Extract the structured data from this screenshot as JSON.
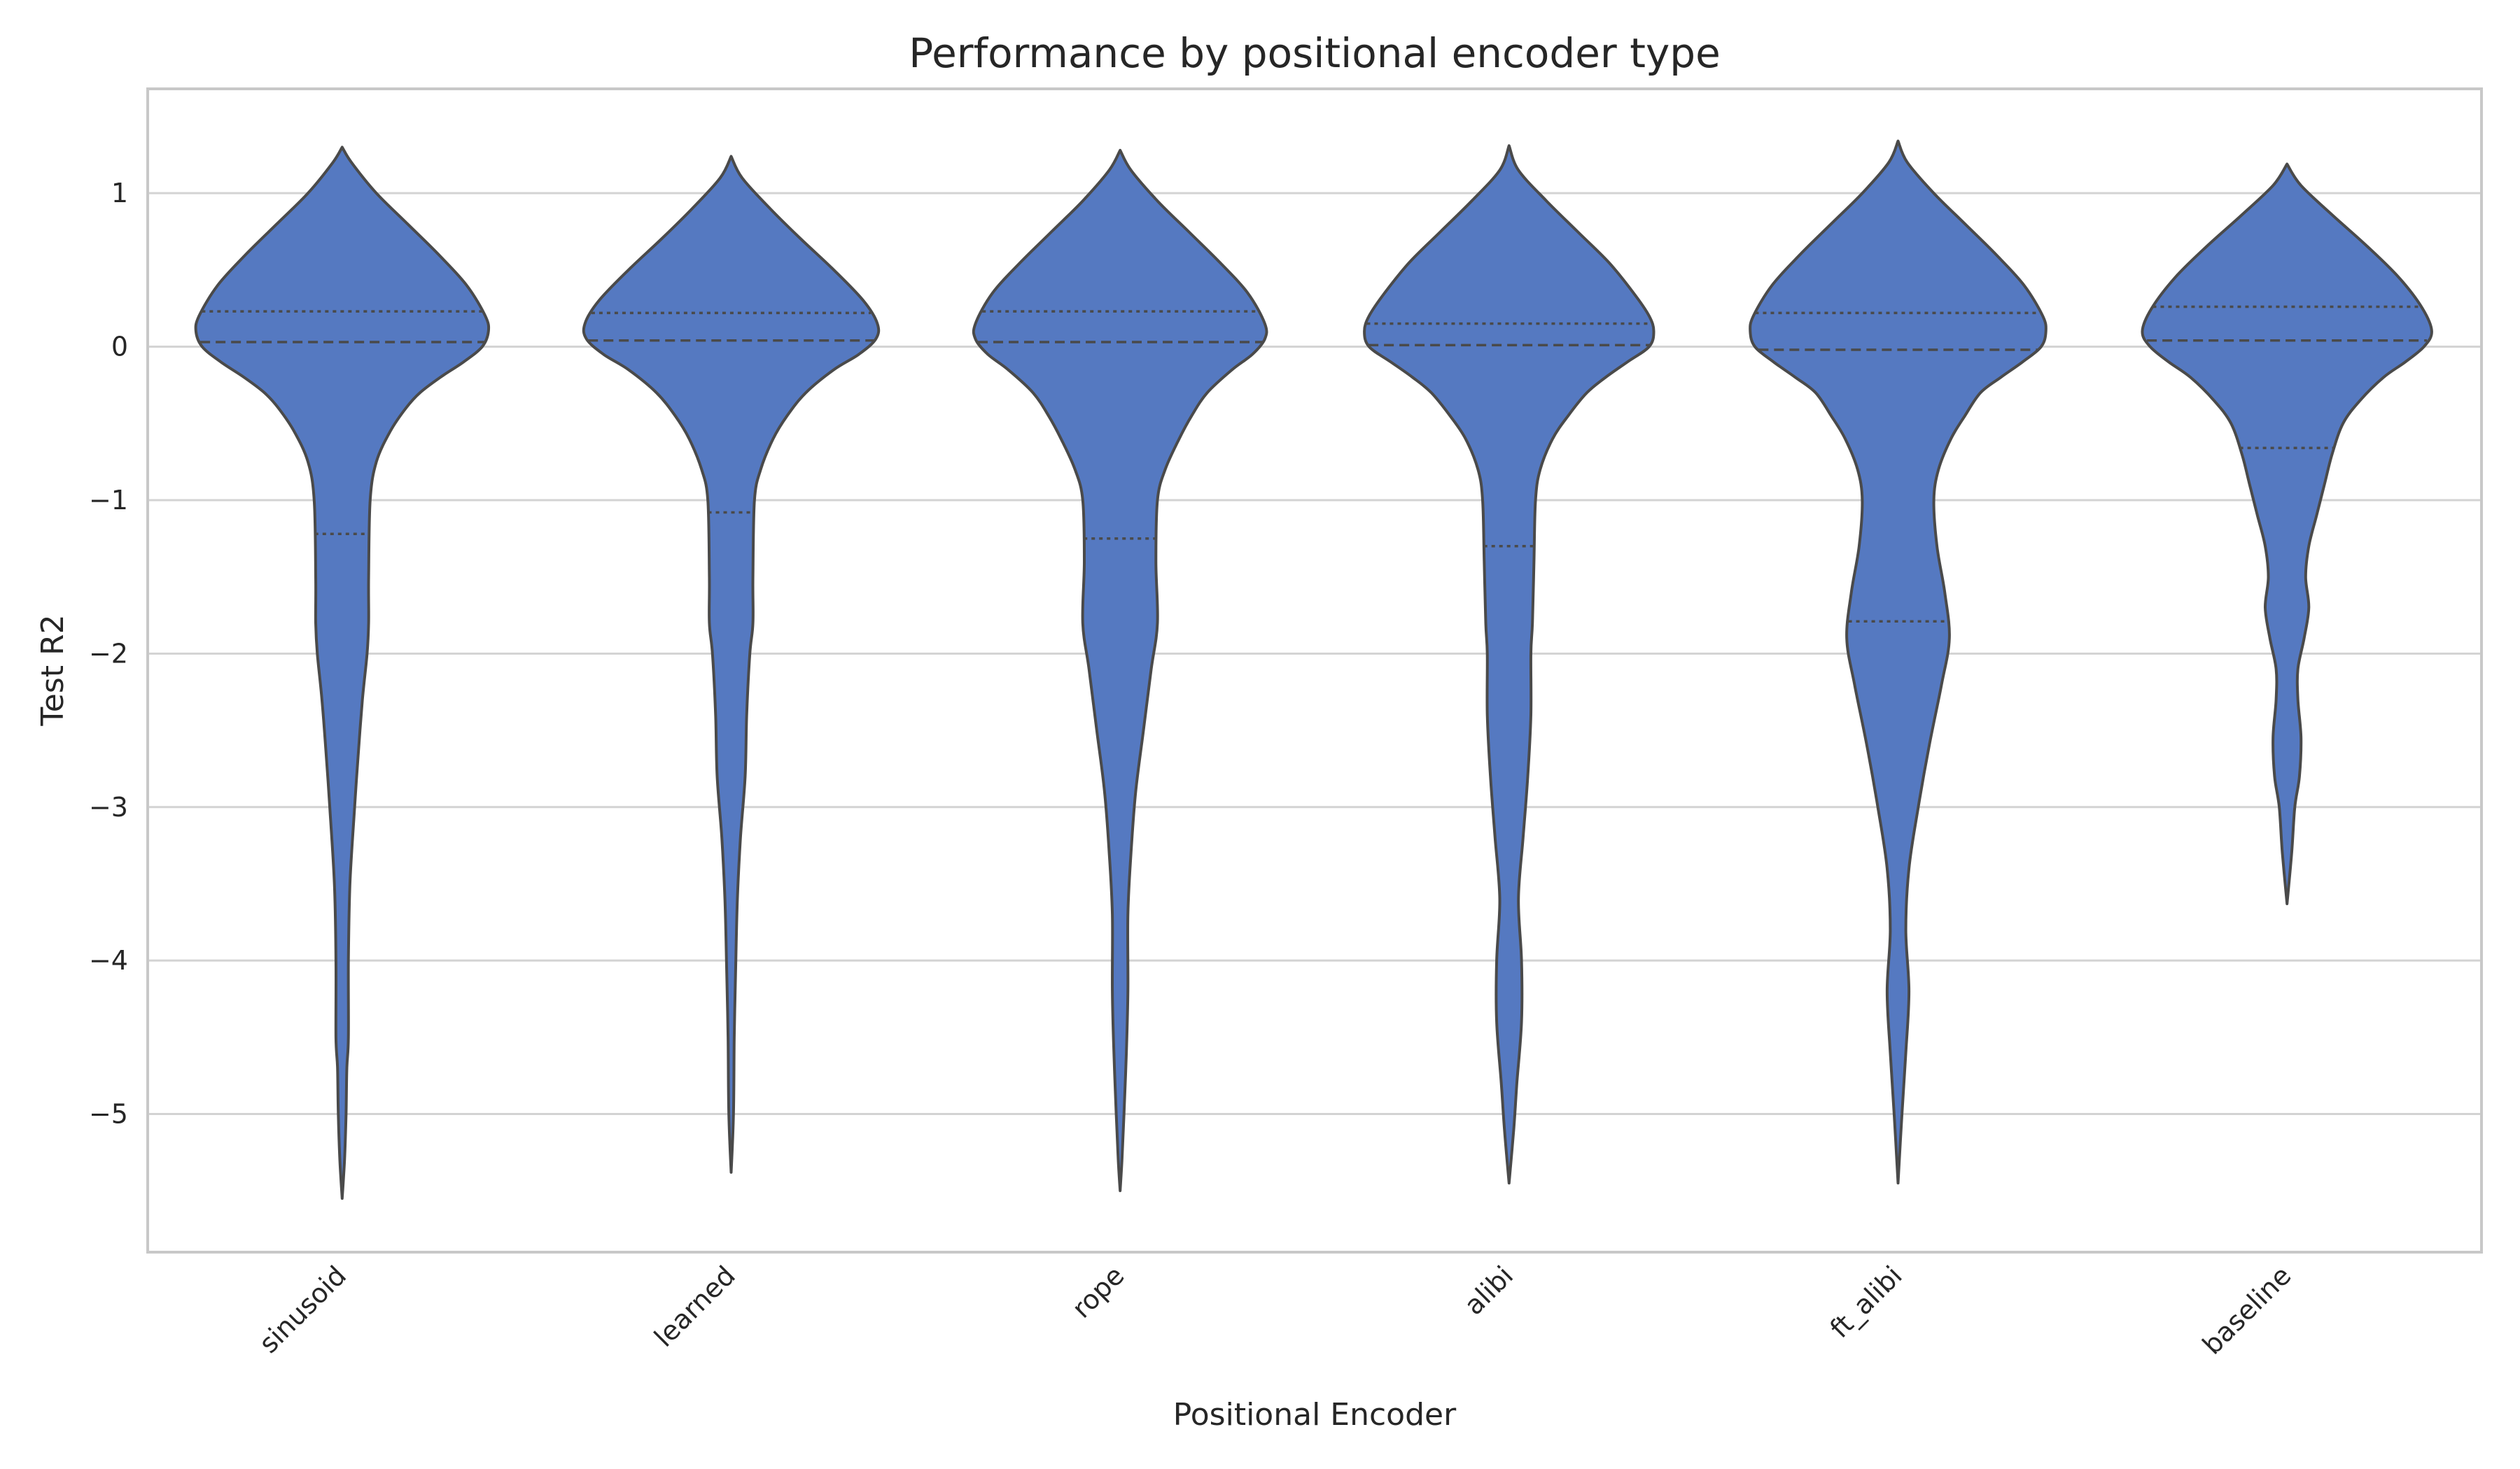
{
  "chart_data": {
    "type": "violin",
    "title": "Performance by positional encoder type",
    "xlabel": "Positional Encoder",
    "ylabel": "Test R2",
    "categories": [
      "sinusoid",
      "learned",
      "rope",
      "alibi",
      "ft_alibi",
      "baseline"
    ],
    "ylim": [
      -5.9,
      1.68
    ],
    "yticks": [
      1,
      0,
      -1,
      -2,
      -3,
      -4,
      -5
    ],
    "ytick_labels": [
      "1",
      "0",
      "−1",
      "−2",
      "−3",
      "−4",
      "−5"
    ],
    "grid": "y",
    "legend": "none",
    "inner": "quart",
    "colors": {
      "fill": "#5579c1",
      "edge": "#4a4a4a",
      "grid": "#d3d3d3",
      "frame": "#c8c8c8",
      "text": "#262626"
    },
    "violins": [
      {
        "category": "sinusoid",
        "min": -5.55,
        "max": 1.3,
        "q1": -1.22,
        "median": 0.03,
        "q3": 0.23,
        "profile": [
          [
            1.3,
            0.0
          ],
          [
            1.2,
            0.06
          ],
          [
            1.0,
            0.22
          ],
          [
            0.8,
            0.42
          ],
          [
            0.6,
            0.62
          ],
          [
            0.4,
            0.8
          ],
          [
            0.2,
            0.92
          ],
          [
            0.1,
            0.94
          ],
          [
            0.0,
            0.9
          ],
          [
            -0.1,
            0.78
          ],
          [
            -0.2,
            0.63
          ],
          [
            -0.3,
            0.5
          ],
          [
            -0.4,
            0.41
          ],
          [
            -0.55,
            0.31
          ],
          [
            -0.75,
            0.22
          ],
          [
            -1.0,
            0.18
          ],
          [
            -1.5,
            0.17
          ],
          [
            -1.8,
            0.17
          ],
          [
            -2.0,
            0.16
          ],
          [
            -2.3,
            0.13
          ],
          [
            -2.7,
            0.1
          ],
          [
            -3.0,
            0.08
          ],
          [
            -3.5,
            0.05
          ],
          [
            -4.0,
            0.04
          ],
          [
            -4.5,
            0.04
          ],
          [
            -4.7,
            0.03
          ],
          [
            -5.0,
            0.025
          ],
          [
            -5.3,
            0.015
          ],
          [
            -5.55,
            0.0
          ]
        ]
      },
      {
        "category": "learned",
        "min": -5.38,
        "max": 1.24,
        "q1": -1.08,
        "median": 0.04,
        "q3": 0.22,
        "profile": [
          [
            1.24,
            0.0
          ],
          [
            1.1,
            0.07
          ],
          [
            0.9,
            0.25
          ],
          [
            0.7,
            0.45
          ],
          [
            0.5,
            0.66
          ],
          [
            0.3,
            0.85
          ],
          [
            0.15,
            0.94
          ],
          [
            0.05,
            0.93
          ],
          [
            -0.05,
            0.82
          ],
          [
            -0.15,
            0.66
          ],
          [
            -0.3,
            0.48
          ],
          [
            -0.45,
            0.36
          ],
          [
            -0.6,
            0.27
          ],
          [
            -0.8,
            0.19
          ],
          [
            -1.0,
            0.15
          ],
          [
            -1.5,
            0.14
          ],
          [
            -1.8,
            0.14
          ],
          [
            -2.0,
            0.12
          ],
          [
            -2.4,
            0.1
          ],
          [
            -2.8,
            0.09
          ],
          [
            -3.2,
            0.06
          ],
          [
            -3.6,
            0.04
          ],
          [
            -4.0,
            0.03
          ],
          [
            -4.5,
            0.02
          ],
          [
            -5.0,
            0.015
          ],
          [
            -5.38,
            0.0
          ]
        ]
      },
      {
        "category": "rope",
        "min": -5.5,
        "max": 1.28,
        "q1": -1.25,
        "median": 0.03,
        "q3": 0.23,
        "profile": [
          [
            1.28,
            0.0
          ],
          [
            1.15,
            0.07
          ],
          [
            0.95,
            0.24
          ],
          [
            0.75,
            0.44
          ],
          [
            0.55,
            0.64
          ],
          [
            0.35,
            0.82
          ],
          [
            0.15,
            0.93
          ],
          [
            0.05,
            0.93
          ],
          [
            -0.05,
            0.85
          ],
          [
            -0.15,
            0.72
          ],
          [
            -0.3,
            0.56
          ],
          [
            -0.45,
            0.46
          ],
          [
            -0.6,
            0.38
          ],
          [
            -0.8,
            0.29
          ],
          [
            -1.0,
            0.24
          ],
          [
            -1.4,
            0.23
          ],
          [
            -1.8,
            0.24
          ],
          [
            -2.1,
            0.2
          ],
          [
            -2.5,
            0.15
          ],
          [
            -2.9,
            0.1
          ],
          [
            -3.3,
            0.07
          ],
          [
            -3.7,
            0.05
          ],
          [
            -4.2,
            0.05
          ],
          [
            -4.6,
            0.04
          ],
          [
            -5.0,
            0.025
          ],
          [
            -5.3,
            0.012
          ],
          [
            -5.5,
            0.0
          ]
        ]
      },
      {
        "category": "alibi",
        "min": -5.45,
        "max": 1.31,
        "q1": -1.3,
        "median": 0.01,
        "q3": 0.15,
        "profile": [
          [
            1.31,
            0.0
          ],
          [
            1.15,
            0.06
          ],
          [
            0.95,
            0.24
          ],
          [
            0.75,
            0.44
          ],
          [
            0.55,
            0.64
          ],
          [
            0.35,
            0.8
          ],
          [
            0.2,
            0.9
          ],
          [
            0.1,
            0.93
          ],
          [
            0.0,
            0.9
          ],
          [
            -0.1,
            0.76
          ],
          [
            -0.2,
            0.62
          ],
          [
            -0.3,
            0.5
          ],
          [
            -0.45,
            0.38
          ],
          [
            -0.6,
            0.28
          ],
          [
            -0.8,
            0.2
          ],
          [
            -1.0,
            0.17
          ],
          [
            -1.4,
            0.16
          ],
          [
            -1.8,
            0.15
          ],
          [
            -2.0,
            0.14
          ],
          [
            -2.4,
            0.14
          ],
          [
            -2.8,
            0.12
          ],
          [
            -3.2,
            0.09
          ],
          [
            -3.6,
            0.06
          ],
          [
            -4.0,
            0.08
          ],
          [
            -4.4,
            0.08
          ],
          [
            -4.8,
            0.05
          ],
          [
            -5.1,
            0.03
          ],
          [
            -5.45,
            0.0
          ]
        ]
      },
      {
        "category": "ft_alibi",
        "min": -5.45,
        "max": 1.34,
        "q1": -1.79,
        "median": -0.02,
        "q3": 0.22,
        "profile": [
          [
            1.34,
            0.0
          ],
          [
            1.2,
            0.06
          ],
          [
            1.0,
            0.23
          ],
          [
            0.8,
            0.43
          ],
          [
            0.6,
            0.63
          ],
          [
            0.4,
            0.81
          ],
          [
            0.2,
            0.93
          ],
          [
            0.1,
            0.95
          ],
          [
            0.0,
            0.92
          ],
          [
            -0.1,
            0.8
          ],
          [
            -0.2,
            0.66
          ],
          [
            -0.3,
            0.53
          ],
          [
            -0.45,
            0.43
          ],
          [
            -0.6,
            0.34
          ],
          [
            -0.8,
            0.26
          ],
          [
            -1.0,
            0.23
          ],
          [
            -1.3,
            0.25
          ],
          [
            -1.6,
            0.3
          ],
          [
            -1.9,
            0.33
          ],
          [
            -2.2,
            0.28
          ],
          [
            -2.6,
            0.2
          ],
          [
            -3.0,
            0.13
          ],
          [
            -3.4,
            0.07
          ],
          [
            -3.8,
            0.05
          ],
          [
            -4.2,
            0.07
          ],
          [
            -4.6,
            0.05
          ],
          [
            -5.0,
            0.025
          ],
          [
            -5.45,
            0.0
          ]
        ]
      },
      {
        "category": "baseline",
        "min": -3.63,
        "max": 1.19,
        "q1": -0.66,
        "median": 0.04,
        "q3": 0.26,
        "profile": [
          [
            1.19,
            0.0
          ],
          [
            1.05,
            0.09
          ],
          [
            0.85,
            0.3
          ],
          [
            0.65,
            0.52
          ],
          [
            0.45,
            0.72
          ],
          [
            0.25,
            0.87
          ],
          [
            0.1,
            0.93
          ],
          [
            0.0,
            0.88
          ],
          [
            -0.1,
            0.76
          ],
          [
            -0.2,
            0.62
          ],
          [
            -0.35,
            0.47
          ],
          [
            -0.5,
            0.36
          ],
          [
            -0.7,
            0.29
          ],
          [
            -0.9,
            0.24
          ],
          [
            -1.1,
            0.19
          ],
          [
            -1.3,
            0.14
          ],
          [
            -1.5,
            0.12
          ],
          [
            -1.7,
            0.14
          ],
          [
            -1.9,
            0.11
          ],
          [
            -2.1,
            0.07
          ],
          [
            -2.3,
            0.07
          ],
          [
            -2.55,
            0.09
          ],
          [
            -2.8,
            0.08
          ],
          [
            -3.0,
            0.05
          ],
          [
            -3.3,
            0.03
          ],
          [
            -3.63,
            0.0
          ]
        ]
      }
    ]
  }
}
